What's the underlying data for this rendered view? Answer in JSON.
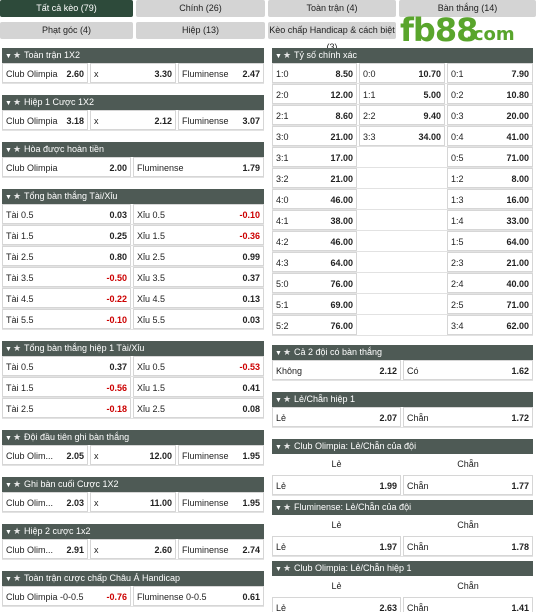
{
  "tabs": [
    {
      "label": "Tất cả kèo (79)",
      "active": true
    },
    {
      "label": "Chính (26)"
    },
    {
      "label": "Toàn trận (4)"
    },
    {
      "label": "Bàn thắng (14)"
    },
    {
      "label": "Phạt góc (4)"
    },
    {
      "label": "Hiệp (13)"
    },
    {
      "label": "Kèo chấp Handicap & cách biệt (3)"
    }
  ],
  "logo": {
    "main": "fb88",
    "suffix": ".com"
  },
  "left": [
    {
      "title": "Toàn trận 1X2",
      "rows": [
        [
          [
            "Club Olimpia",
            "2.60"
          ],
          [
            "x",
            "3.30"
          ],
          [
            "Fluminense",
            "2.47"
          ]
        ]
      ]
    },
    {
      "title": "Hiệp 1 Cược 1X2",
      "rows": [
        [
          [
            "Club Olimpia",
            "3.18"
          ],
          [
            "x",
            "2.12"
          ],
          [
            "Fluminense",
            "3.07"
          ]
        ]
      ]
    },
    {
      "title": "Hòa được hoàn tiền",
      "rows": [
        [
          [
            "Club Olimpia",
            "2.00"
          ],
          [
            "Fluminense",
            "1.79"
          ]
        ]
      ]
    },
    {
      "title": "Tổng bàn thắng Tài/Xỉu",
      "rows": [
        [
          [
            "Tài 0.5",
            "0.03"
          ],
          [
            "Xỉu 0.5",
            "-0.10"
          ]
        ],
        [
          [
            "Tài 1.5",
            "0.25"
          ],
          [
            "Xỉu 1.5",
            "-0.36"
          ]
        ],
        [
          [
            "Tài 2.5",
            "0.80"
          ],
          [
            "Xỉu 2.5",
            "0.99"
          ]
        ],
        [
          [
            "Tài 3.5",
            "-0.50"
          ],
          [
            "Xỉu 3.5",
            "0.37"
          ]
        ],
        [
          [
            "Tài 4.5",
            "-0.22"
          ],
          [
            "Xỉu 4.5",
            "0.13"
          ]
        ],
        [
          [
            "Tài 5.5",
            "-0.10"
          ],
          [
            "Xỉu 5.5",
            "0.03"
          ]
        ]
      ]
    },
    {
      "title": "Tổng bàn thắng hiệp 1 Tài/Xỉu",
      "rows": [
        [
          [
            "Tài 0.5",
            "0.37"
          ],
          [
            "Xỉu 0.5",
            "-0.53"
          ]
        ],
        [
          [
            "Tài 1.5",
            "-0.56"
          ],
          [
            "Xỉu 1.5",
            "0.41"
          ]
        ],
        [
          [
            "Tài 2.5",
            "-0.18"
          ],
          [
            "Xỉu 2.5",
            "0.08"
          ]
        ]
      ]
    },
    {
      "title": "Đội đầu tiên ghi bàn thắng",
      "rows": [
        [
          [
            "Club Olim...",
            "2.05"
          ],
          [
            "x",
            "12.00"
          ],
          [
            "Fluminense",
            "1.95"
          ]
        ]
      ]
    },
    {
      "title": "Ghi bàn cuối Cược 1X2",
      "rows": [
        [
          [
            "Club Olim...",
            "2.03"
          ],
          [
            "x",
            "11.00"
          ],
          [
            "Fluminense",
            "1.95"
          ]
        ]
      ]
    },
    {
      "title": "Hiệp 2 cược 1x2",
      "rows": [
        [
          [
            "Club Olim...",
            "2.91"
          ],
          [
            "x",
            "2.60"
          ],
          [
            "Fluminense",
            "2.74"
          ]
        ]
      ]
    },
    {
      "title": "Toàn trận cược chấp Châu Á Handicap",
      "rows": [
        [
          [
            "Club Olimpia -0-0.5",
            "-0.76"
          ],
          [
            "Fluminense 0-0.5",
            "0.61"
          ]
        ]
      ]
    }
  ],
  "right": [
    {
      "title": "Tỷ số chính xác",
      "cols": 3,
      "rows": [
        [
          [
            "1:0",
            "8.50"
          ],
          [
            "0:0",
            "10.70"
          ],
          [
            "0:1",
            "7.90"
          ]
        ],
        [
          [
            "2:0",
            "12.00"
          ],
          [
            "1:1",
            "5.00"
          ],
          [
            "0:2",
            "10.80"
          ]
        ],
        [
          [
            "2:1",
            "8.60"
          ],
          [
            "2:2",
            "9.40"
          ],
          [
            "0:3",
            "20.00"
          ]
        ],
        [
          [
            "3:0",
            "21.00"
          ],
          [
            "3:3",
            "34.00"
          ],
          [
            "0:4",
            "41.00"
          ]
        ],
        [
          [
            "3:1",
            "17.00"
          ],
          null,
          [
            "0:5",
            "71.00"
          ]
        ],
        [
          [
            "3:2",
            "21.00"
          ],
          null,
          [
            "1:2",
            "8.00"
          ]
        ],
        [
          [
            "4:0",
            "46.00"
          ],
          null,
          [
            "1:3",
            "16.00"
          ]
        ],
        [
          [
            "4:1",
            "38.00"
          ],
          null,
          [
            "1:4",
            "33.00"
          ]
        ],
        [
          [
            "4:2",
            "46.00"
          ],
          null,
          [
            "1:5",
            "64.00"
          ]
        ],
        [
          [
            "4:3",
            "64.00"
          ],
          null,
          [
            "2:3",
            "21.00"
          ]
        ],
        [
          [
            "5:0",
            "76.00"
          ],
          null,
          [
            "2:4",
            "40.00"
          ]
        ],
        [
          [
            "5:1",
            "69.00"
          ],
          null,
          [
            "2:5",
            "71.00"
          ]
        ],
        [
          [
            "5:2",
            "76.00"
          ],
          null,
          [
            "3:4",
            "62.00"
          ]
        ]
      ]
    },
    {
      "title": "Cả 2 đội có bàn thắng",
      "rows": [
        [
          [
            "Không",
            "2.12"
          ],
          [
            "Có",
            "1.62"
          ]
        ]
      ]
    },
    {
      "title": "Lẻ/Chẵn hiệp 1",
      "rows": [
        [
          [
            "Lẻ",
            "2.07"
          ],
          [
            "Chẵn",
            "1.72"
          ]
        ]
      ]
    },
    {
      "title": "Club Olimpia: Lẻ/Chẵn của đội",
      "headers": [
        "Lẻ",
        "Chẵn"
      ],
      "rows": [
        [
          [
            "Lẻ",
            "1.99"
          ],
          [
            "Chẵn",
            "1.77"
          ]
        ]
      ]
    },
    {
      "title": "Fluminense: Lẻ/Chẵn của đội",
      "headers": [
        "Lẻ",
        "Chẵn"
      ],
      "rows": [
        [
          [
            "Lẻ",
            "1.97"
          ],
          [
            "Chẵn",
            "1.78"
          ]
        ]
      ]
    },
    {
      "title": "Club Olimpia: Lẻ/Chẵn hiệp 1",
      "headers": [
        "Lẻ",
        "Chẵn"
      ],
      "rows": [
        [
          [
            "Lẻ",
            "2.63"
          ],
          [
            "Chẵn",
            "1.41"
          ]
        ]
      ]
    }
  ]
}
